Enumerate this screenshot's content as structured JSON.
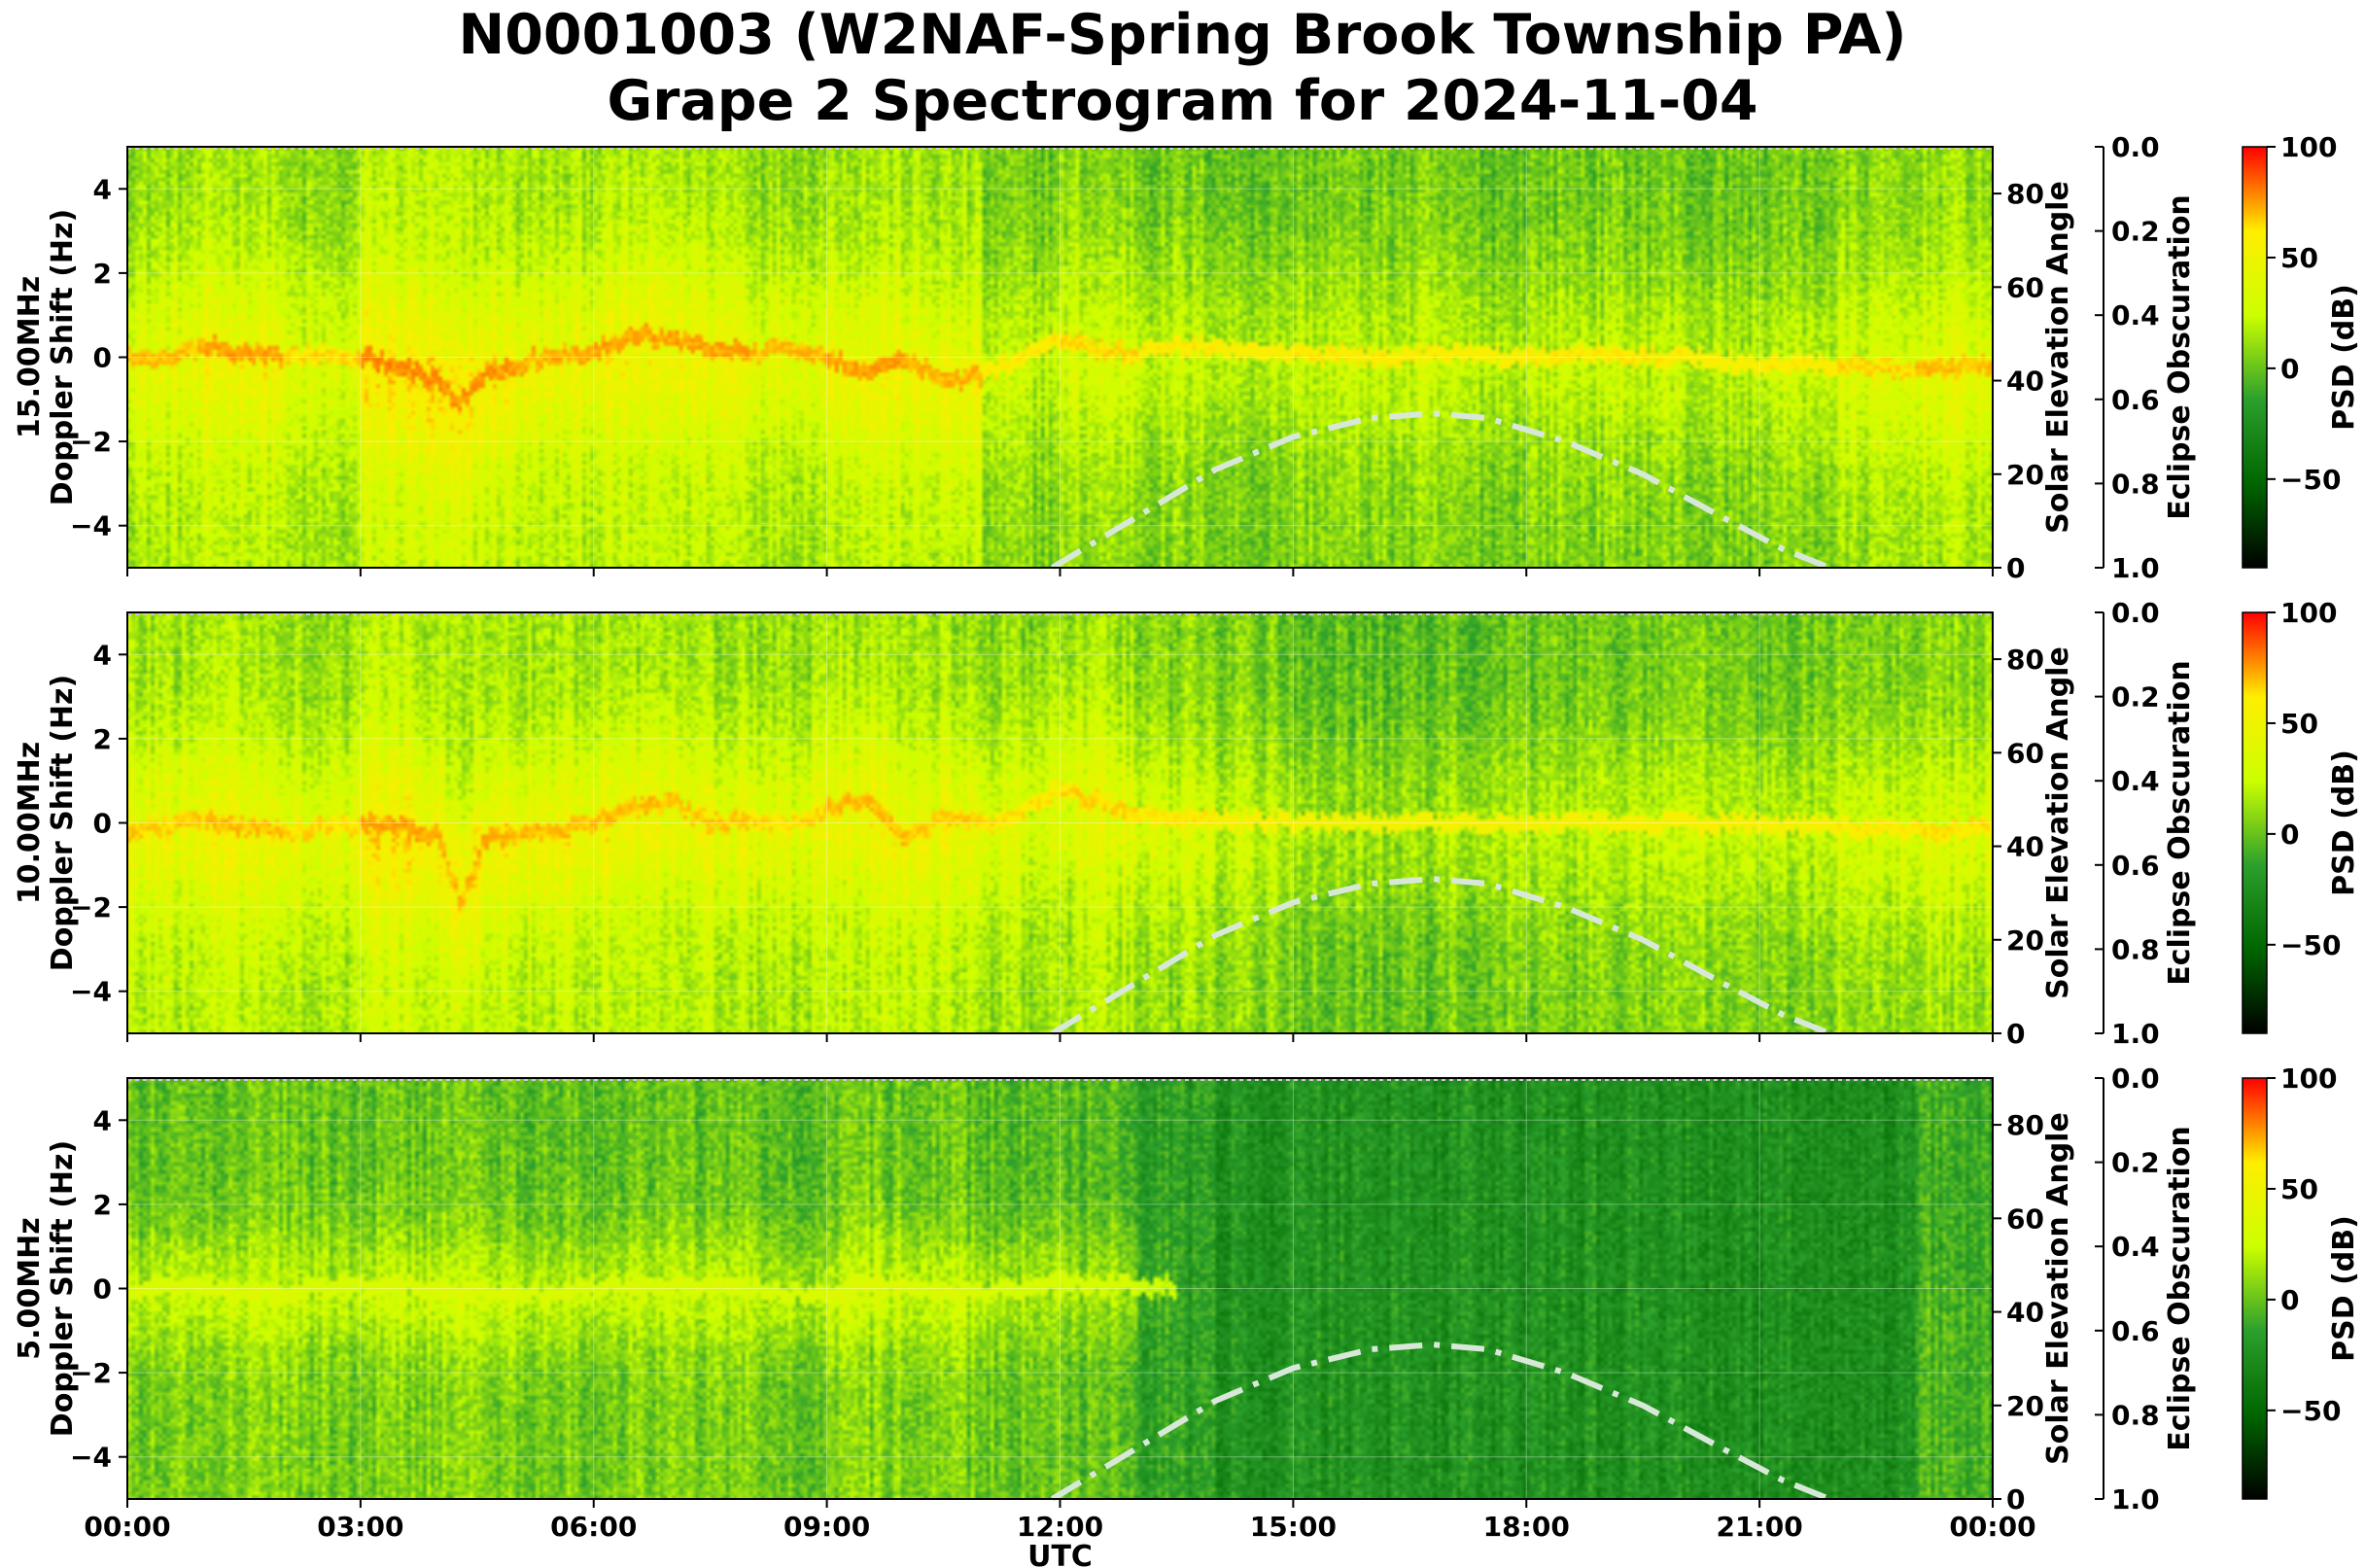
{
  "chart_data": {
    "type": "heatmap",
    "title": "N0001003 (W2NAF-Spring Brook Township PA)",
    "subtitle": "Grape 2 Spectrogram for 2024-11-04",
    "xlabel": "UTC",
    "x_ticks": [
      "00:00",
      "03:00",
      "06:00",
      "09:00",
      "12:00",
      "15:00",
      "18:00",
      "21:00",
      "00:00"
    ],
    "xlim_hours": [
      0,
      24
    ],
    "ylabel_suffix": "Doppler Shift (Hz)",
    "ylim": [
      -5,
      5
    ],
    "y_ticks": [
      -4,
      -2,
      0,
      2,
      4
    ],
    "right_axis_label": "Solar Elevation Angle",
    "right_axis_ylim": [
      0,
      90
    ],
    "right_axis_ticks": [
      0,
      20,
      40,
      60,
      80
    ],
    "eclipse_label": "Eclipse Obscuration",
    "eclipse_ticks": [
      "0.0",
      "0.2",
      "0.4",
      "0.6",
      "0.8",
      "1.0"
    ],
    "colorbar_label": "PSD (dB)",
    "colorbar_range": [
      -90,
      100
    ],
    "colorbar_ticks": [
      100,
      50,
      0,
      -50
    ],
    "colorbar_colors": [
      "#000000",
      "#006600",
      "#2ca02c",
      "#ccff00",
      "#ffee00",
      "#ff0000"
    ],
    "grid": true,
    "solar_elevation": {
      "hours": [
        11.9,
        13,
        14,
        15,
        16,
        16.8,
        17.5,
        18.5,
        19.5,
        20.5,
        21.3,
        21.9
      ],
      "degrees": [
        0,
        11,
        21,
        28,
        32,
        33,
        32,
        27,
        20,
        11,
        4,
        0
      ]
    },
    "panels": [
      {
        "frequency": "15.00MHz",
        "carrier_trace": {
          "hours": [
            0,
            0.5,
            1,
            1.5,
            2,
            2.5,
            3,
            3.5,
            4,
            4.3,
            4.6,
            5,
            5.5,
            6,
            6.5,
            7,
            7.5,
            8,
            8.5,
            9,
            9.5,
            10,
            10.5,
            11,
            11.5,
            12,
            12.5,
            13,
            13.5,
            14,
            15,
            16,
            17,
            18,
            19,
            20,
            21,
            22,
            23,
            24
          ],
          "doppler_hz": [
            0,
            -0.1,
            0.3,
            0.1,
            0,
            0.1,
            0,
            -0.2,
            -0.6,
            -1.1,
            -0.4,
            -0.2,
            0.1,
            0.1,
            0.6,
            0.4,
            0.2,
            0.1,
            0.2,
            0,
            -0.3,
            0,
            -0.6,
            -0.4,
            0,
            0.4,
            0.2,
            0.1,
            0.3,
            0.2,
            0.1,
            0,
            0.1,
            0,
            0.1,
            0,
            -0.2,
            -0.2,
            -0.3,
            -0.2
          ]
        },
        "activity": [
          0.7,
          0.8,
          0.6,
          0.9,
          0.85,
          0.75,
          0.8,
          0.8,
          0.7,
          0.8,
          0.75,
          0.5,
          0.6,
          0.5,
          0.45,
          0.5,
          0.5,
          0.45,
          0.5,
          0.5,
          0.45,
          0.5,
          0.6,
          0.7
        ],
        "background_db": -20,
        "trace_peak_db": 75,
        "glow_width_hz": 1.6
      },
      {
        "frequency": "10.00MHz",
        "carrier_trace": {
          "hours": [
            0,
            0.5,
            1,
            1.5,
            2,
            2.5,
            3,
            3.5,
            4,
            4.3,
            4.6,
            5,
            5.5,
            6,
            6.5,
            7,
            7.5,
            8,
            8.5,
            9,
            9.5,
            10,
            10.5,
            11,
            11.5,
            12,
            12.5,
            13,
            13.5,
            14,
            15,
            16,
            17,
            18,
            19,
            20,
            21,
            22,
            23,
            24
          ],
          "doppler_hz": [
            -0.2,
            -0.1,
            0.1,
            -0.1,
            -0.2,
            -0.1,
            0,
            -0.1,
            -0.3,
            -2,
            -0.4,
            -0.3,
            -0.2,
            0,
            0.3,
            0.5,
            0,
            0.1,
            -0.1,
            0.3,
            0.6,
            -0.3,
            0.1,
            0,
            0.2,
            0.8,
            0.5,
            0.2,
            0.1,
            0.1,
            0,
            0,
            0,
            0,
            0,
            0,
            0,
            -0.1,
            -0.2,
            -0.1
          ]
        },
        "activity": [
          0.75,
          0.8,
          0.7,
          0.9,
          0.85,
          0.8,
          0.8,
          0.75,
          0.7,
          0.8,
          0.75,
          0.65,
          0.7,
          0.6,
          0.5,
          0.4,
          0.4,
          0.45,
          0.45,
          0.5,
          0.5,
          0.5,
          0.6,
          0.65
        ],
        "background_db": -20,
        "trace_peak_db": 70,
        "glow_width_hz": 1.5
      },
      {
        "frequency": "5.00MHz",
        "carrier_trace": {
          "hours": [
            0,
            1,
            2,
            3,
            4,
            5,
            6,
            7,
            8,
            9,
            9.5,
            10,
            11,
            12,
            12.5,
            13,
            13.5
          ],
          "doppler_hz": [
            0,
            0,
            -0.1,
            0.1,
            0,
            -0.2,
            0,
            0.1,
            0,
            -0.2,
            0.2,
            0,
            -0.1,
            0.2,
            0.1,
            0.1,
            0
          ]
        },
        "activity": [
          0.55,
          0.6,
          0.55,
          0.6,
          0.6,
          0.55,
          0.55,
          0.55,
          0.5,
          0.6,
          0.55,
          0.5,
          0.45,
          0.15,
          0.02,
          0.02,
          0.02,
          0.02,
          0.02,
          0.02,
          0.02,
          0.02,
          0.02,
          0.35
        ],
        "background_db": -25,
        "trace_peak_db": 40,
        "glow_width_hz": 1.0
      }
    ]
  }
}
